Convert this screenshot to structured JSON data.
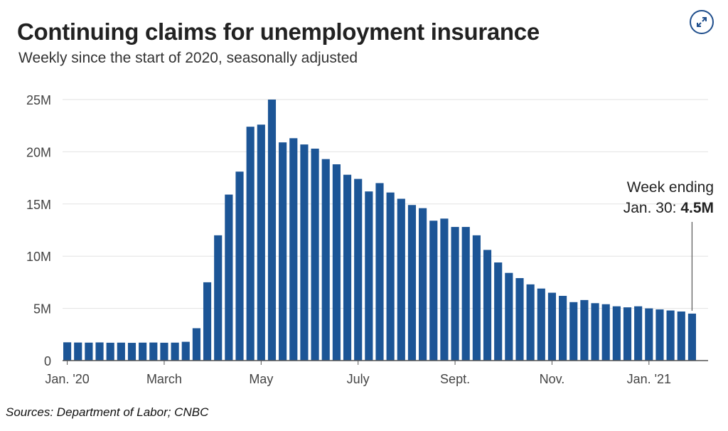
{
  "title": "Continuing claims for unemployment insurance",
  "subtitle": "Weekly since the start of 2020, seasonally adjusted",
  "source": "Sources:  Department of Labor; CNBC",
  "expand_icon": "expand-arrows-icon",
  "colors": {
    "bar": "#1c5596",
    "grid": "#e2e2e2",
    "axis": "#555555",
    "accent": "#1f4e8c"
  },
  "chart_data": {
    "type": "bar",
    "title": "Continuing claims for unemployment insurance",
    "subtitle": "Weekly since the start of 2020, seasonally adjusted",
    "xlabel": "",
    "ylabel": "",
    "ylim": [
      0,
      25000000
    ],
    "y_ticks": [
      {
        "value": 0,
        "label": "0"
      },
      {
        "value": 5000000,
        "label": "5M"
      },
      {
        "value": 10000000,
        "label": "10M"
      },
      {
        "value": 15000000,
        "label": "15M"
      },
      {
        "value": 20000000,
        "label": "20M"
      },
      {
        "value": 25000000,
        "label": "25M"
      }
    ],
    "x_ticks": [
      {
        "index": 0,
        "label": "Jan. '20"
      },
      {
        "index": 9,
        "label": "March"
      },
      {
        "index": 18,
        "label": "May"
      },
      {
        "index": 27,
        "label": "July"
      },
      {
        "index": 36,
        "label": "Sept."
      },
      {
        "index": 45,
        "label": "Nov."
      },
      {
        "index": 54,
        "label": "Jan. '21"
      }
    ],
    "grid": true,
    "values": [
      1.75,
      1.73,
      1.72,
      1.74,
      1.71,
      1.72,
      1.7,
      1.72,
      1.73,
      1.71,
      1.72,
      1.8,
      3.1,
      7.5,
      12.0,
      15.9,
      18.1,
      22.4,
      22.6,
      25.0,
      20.9,
      21.3,
      20.7,
      20.3,
      19.3,
      18.8,
      17.8,
      17.4,
      16.2,
      17.0,
      16.1,
      15.5,
      14.9,
      14.6,
      13.4,
      13.6,
      12.8,
      12.8,
      12.0,
      10.6,
      9.4,
      8.4,
      7.9,
      7.3,
      6.9,
      6.5,
      6.2,
      5.6,
      5.8,
      5.5,
      5.4,
      5.2,
      5.1,
      5.2,
      5.0,
      4.9,
      4.8,
      4.7,
      4.5
    ],
    "value_unit": "millions",
    "annotation": {
      "line1": "Week ending",
      "line2_prefix": "Jan. 30: ",
      "line2_value": "4.5M",
      "index": 58
    }
  }
}
